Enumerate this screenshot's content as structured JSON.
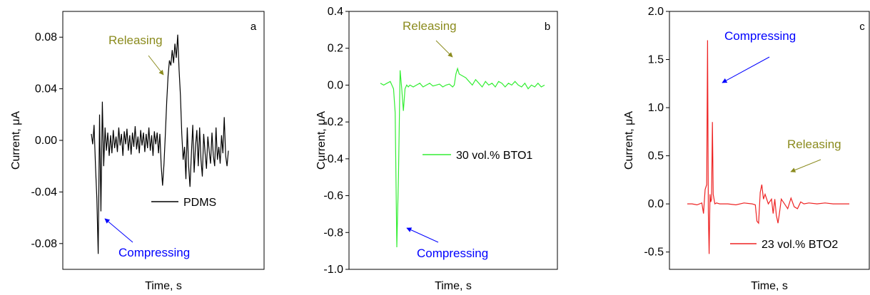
{
  "chart_data": [
    {
      "type": "line",
      "panel_label": "a",
      "xlabel": "Time, s",
      "ylabel": "Current, μA",
      "ylim": [
        -0.1,
        0.1
      ],
      "yticks": [
        "0.08",
        "0.04",
        "0.00",
        "-0.04",
        "-0.08"
      ],
      "ytick_values": [
        0.08,
        0.04,
        0.0,
        -0.04,
        -0.08
      ],
      "series": [
        {
          "name": "PDMS",
          "color": "#000000",
          "x": [
            0,
            1,
            2,
            3,
            4,
            5,
            6,
            7,
            8,
            9,
            10,
            11,
            12,
            13,
            14,
            15,
            16,
            17,
            18,
            19,
            20,
            21,
            22,
            23,
            24,
            25,
            26,
            27,
            28,
            29,
            30,
            31,
            32,
            33,
            34,
            35,
            36,
            37,
            38,
            39,
            40,
            41,
            42,
            43,
            44,
            45,
            46,
            47,
            48,
            49,
            50,
            51,
            52,
            53,
            54,
            55,
            56,
            57,
            58,
            59,
            60,
            61,
            62,
            63,
            64,
            65,
            66,
            67,
            68,
            69,
            70,
            71,
            72,
            73,
            74,
            75,
            76,
            77,
            78,
            79,
            80,
            81,
            82,
            83,
            84,
            85,
            86,
            87,
            88,
            89,
            90,
            91,
            92,
            93,
            94,
            95,
            96,
            97,
            98,
            99,
            100
          ],
          "y": [
            0.005,
            -0.003,
            0.012,
            -0.02,
            -0.045,
            -0.088,
            0.02,
            -0.055,
            0.03,
            -0.02,
            0.01,
            -0.008,
            0.006,
            -0.012,
            0.004,
            -0.01,
            0.008,
            -0.006,
            0.003,
            -0.009,
            0.01,
            -0.004,
            0.005,
            -0.012,
            0.007,
            -0.003,
            0.009,
            -0.008,
            0.004,
            -0.011,
            0.006,
            -0.005,
            0.011,
            -0.007,
            0.003,
            -0.01,
            0.008,
            -0.004,
            0.006,
            -0.009,
            0.005,
            -0.006,
            0.01,
            -0.008,
            0.004,
            -0.012,
            0.007,
            -0.003,
            0.006,
            -0.01,
            0.005,
            -0.02,
            -0.035,
            -0.018,
            0.005,
            0.03,
            0.05,
            0.062,
            0.058,
            0.07,
            0.06,
            0.075,
            0.064,
            0.082,
            0.055,
            0.035,
            0.005,
            -0.015,
            -0.005,
            -0.03,
            0.01,
            -0.02,
            -0.036,
            -0.01,
            0.012,
            -0.025,
            -0.005,
            0.008,
            -0.02,
            0.01,
            -0.015,
            -0.028,
            0.005,
            -0.01,
            -0.022,
            0.003,
            -0.008,
            -0.018,
            0.006,
            -0.012,
            -0.02,
            0.01,
            -0.015,
            -0.005,
            -0.018,
            0.004,
            -0.01,
            0.018,
            -0.012,
            -0.02,
            -0.008
          ]
        }
      ],
      "annotations": [
        {
          "text": "Releasing",
          "color": "#8b8b1e"
        },
        {
          "text": "Compressing",
          "color": "#0000ff"
        }
      ]
    },
    {
      "type": "line",
      "panel_label": "b",
      "xlabel": "Time, s",
      "ylabel": "Current, μA",
      "ylim": [
        -1.0,
        0.4
      ],
      "yticks": [
        "0.4",
        "0.2",
        "0.0",
        "-0.2",
        "-0.4",
        "-0.6",
        "-0.8",
        "-1.0"
      ],
      "ytick_values": [
        0.4,
        0.2,
        0.0,
        -0.2,
        -0.4,
        -0.6,
        -0.8,
        -1.0
      ],
      "series": [
        {
          "name": "30 vol.% BTO1",
          "color": "#33ee33",
          "x": [
            0,
            2,
            4,
            6,
            8,
            9,
            10,
            11,
            12,
            13,
            14,
            15,
            16,
            17,
            18,
            20,
            22,
            24,
            26,
            28,
            30,
            32,
            34,
            36,
            38,
            40,
            42,
            44,
            45,
            46,
            47,
            48,
            50,
            52,
            54,
            56,
            58,
            60,
            62,
            64,
            66,
            68,
            70,
            72,
            74,
            76,
            78,
            80,
            82,
            84,
            86,
            88,
            90,
            92,
            94,
            96,
            98,
            100
          ],
          "y": [
            0.01,
            0.0,
            0.01,
            0.02,
            -0.02,
            -0.15,
            -0.88,
            -0.5,
            0.08,
            -0.02,
            -0.14,
            -0.02,
            0.0,
            -0.01,
            0.0,
            -0.01,
            0.0,
            0.01,
            -0.01,
            0.0,
            0.01,
            -0.005,
            0.0,
            0.005,
            -0.01,
            0.0,
            0.005,
            -0.01,
            0.0,
            0.06,
            0.09,
            0.06,
            0.05,
            0.04,
            0.02,
            0.0,
            0.03,
            0.01,
            -0.01,
            0.02,
            0.0,
            0.01,
            -0.01,
            0.02,
            0.01,
            -0.01,
            0.01,
            0.0,
            0.02,
            0.0,
            -0.01,
            0.01,
            -0.02,
            0.0,
            -0.01,
            0.01,
            -0.01,
            0.0
          ]
        }
      ],
      "annotations": [
        {
          "text": "Releasing",
          "color": "#8b8b1e"
        },
        {
          "text": "Compressing",
          "color": "#0000ff"
        }
      ]
    },
    {
      "type": "line",
      "panel_label": "c",
      "xlabel": "Time, s",
      "ylabel": "Current, μA",
      "ylim": [
        -0.68,
        2.0
      ],
      "yticks": [
        "2.0",
        "1.5",
        "1.0",
        "0.5",
        "0.0",
        "-0.5"
      ],
      "ytick_values": [
        2.0,
        1.5,
        1.0,
        0.5,
        0.0,
        -0.5
      ],
      "series": [
        {
          "name": "23 vol.% BTO2",
          "color": "#ee2222",
          "x": [
            0,
            3,
            6,
            9,
            10,
            11,
            12,
            12.5,
            13,
            13.5,
            14,
            14.5,
            15,
            15.5,
            16,
            17,
            18,
            20,
            25,
            30,
            35,
            40,
            42,
            43,
            44,
            45,
            46,
            47,
            48,
            50,
            52,
            53,
            54,
            55,
            56,
            57,
            58,
            60,
            62,
            64,
            66,
            68,
            70,
            72,
            75,
            80,
            85,
            90,
            95,
            100
          ],
          "y": [
            0.0,
            0.0,
            -0.01,
            0.01,
            -0.1,
            0.15,
            0.2,
            1.7,
            -0.1,
            -0.52,
            0.1,
            0.02,
            0.05,
            0.85,
            0.1,
            0.0,
            0.01,
            0.0,
            0.0,
            -0.01,
            0.01,
            0.0,
            -0.01,
            -0.18,
            -0.2,
            0.12,
            0.2,
            0.05,
            0.1,
            0.0,
            0.05,
            -0.1,
            0.05,
            -0.12,
            -0.2,
            -0.08,
            0.05,
            0.0,
            -0.05,
            0.06,
            -0.03,
            -0.05,
            0.02,
            0.0,
            0.01,
            0.0,
            0.01,
            0.0,
            0.0,
            0.0
          ]
        }
      ],
      "annotations": [
        {
          "text": "Compressing",
          "color": "#0000ff"
        },
        {
          "text": "Releasing",
          "color": "#8b8b1e"
        }
      ]
    }
  ]
}
